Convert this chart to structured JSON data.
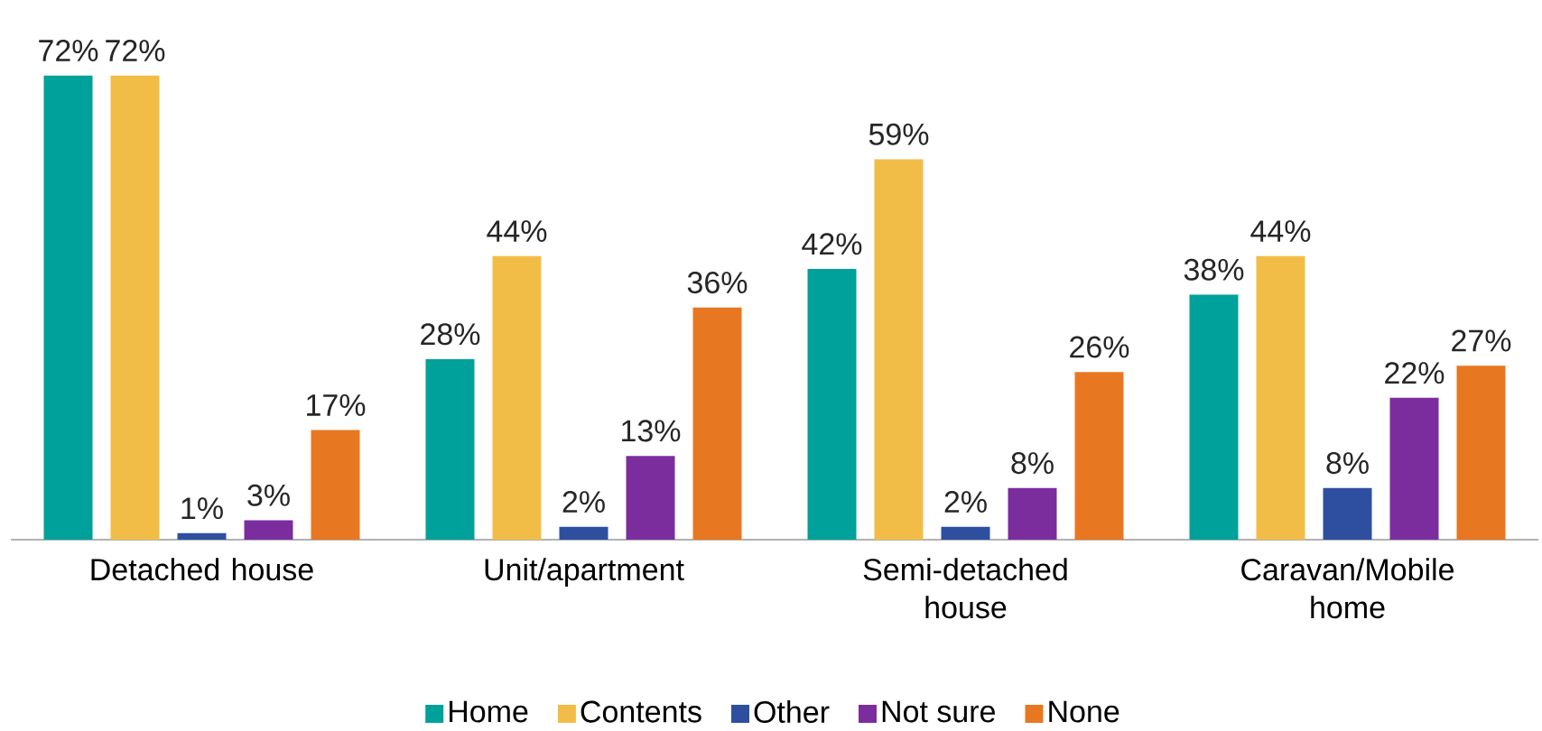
{
  "chart_data": {
    "type": "bar",
    "categories": [
      "Detached house",
      "Unit/apartment",
      "Semi-detached house",
      "Caravan/Mobile home"
    ],
    "series": [
      {
        "name": "Home",
        "color": "#00a19a",
        "values": [
          72,
          28,
          42,
          38
        ],
        "value_labels": [
          "72%",
          "28%",
          "42%",
          "38%"
        ]
      },
      {
        "name": "Contents",
        "color": "#f2bd47",
        "values": [
          72,
          44,
          59,
          44
        ],
        "value_labels": [
          "72%",
          "44%",
          "59%",
          "44%"
        ]
      },
      {
        "name": "Other",
        "color": "#2e4fa0",
        "values": [
          1,
          2,
          2,
          8
        ],
        "value_labels": [
          "1%",
          "2%",
          "2%",
          "8%"
        ]
      },
      {
        "name": "Not sure",
        "color": "#7b2d9e",
        "values": [
          3,
          13,
          8,
          22
        ],
        "value_labels": [
          "3%",
          "13%",
          "8%",
          "22%"
        ]
      },
      {
        "name": "None",
        "color": "#e87722",
        "values": [
          17,
          36,
          26,
          27
        ],
        "value_labels": [
          "17%",
          "36%",
          "26%",
          "27%"
        ]
      }
    ],
    "legend": "bottom"
  }
}
